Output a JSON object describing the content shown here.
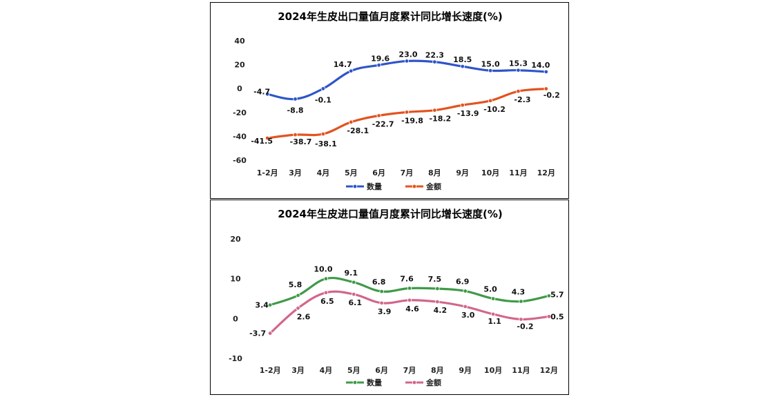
{
  "chart_data": [
    {
      "type": "line",
      "title": "2024年生皮出口量值月度累计同比增长速度(%)",
      "categories": [
        "1-2月",
        "3月",
        "4月",
        "5月",
        "6月",
        "7月",
        "8月",
        "9月",
        "10月",
        "11月",
        "12月"
      ],
      "yticks": [
        "40",
        "20",
        "0",
        "-20",
        "-40",
        "-60"
      ],
      "ylim": [
        -60,
        40
      ],
      "series": [
        {
          "name": "数量",
          "color": "#2E55C9",
          "values": [
            -4.7,
            -8.8,
            -0.1,
            14.7,
            19.6,
            23.0,
            22.3,
            18.5,
            15.0,
            15.3,
            14.0
          ],
          "labels": [
            "-4.7",
            "-8.8",
            "-0.1",
            "14.7",
            "19.6",
            "23.0",
            "22.3",
            "18.5",
            "15.0",
            "15.3",
            "14.0"
          ]
        },
        {
          "name": "金额",
          "color": "#E2531F",
          "values": [
            -41.5,
            -38.7,
            -38.1,
            -28.1,
            -22.7,
            -19.8,
            -18.2,
            -13.9,
            -10.2,
            -2.3,
            -0.2
          ],
          "labels": [
            "-41.5",
            "-38.7",
            "-38.1",
            "-28.1",
            "-22.7",
            "-19.8",
            "-18.2",
            "-13.9",
            "-10.2",
            "-2.3",
            "-0.2"
          ]
        }
      ],
      "legend": "bottom"
    },
    {
      "type": "line",
      "title": "2024年生皮进口量值月度累计同比增长速度(%)",
      "categories": [
        "1-2月",
        "3月",
        "4月",
        "5月",
        "6月",
        "7月",
        "8月",
        "9月",
        "10月",
        "11月",
        "12月"
      ],
      "yticks": [
        "20",
        "10",
        "0",
        "-10"
      ],
      "ylim": [
        -10,
        20
      ],
      "series": [
        {
          "name": "数量",
          "color": "#3F9A48",
          "values": [
            3.4,
            5.8,
            10.0,
            9.1,
            6.8,
            7.6,
            7.5,
            6.9,
            5.0,
            4.3,
            5.7
          ],
          "labels": [
            "3.4",
            "5.8",
            "10.0",
            "9.1",
            "6.8",
            "7.6",
            "7.5",
            "6.9",
            "5.0",
            "4.3",
            "5.7"
          ]
        },
        {
          "name": "金额",
          "color": "#D2668B",
          "values": [
            -3.7,
            2.6,
            6.5,
            6.1,
            3.9,
            4.6,
            4.2,
            3.0,
            1.1,
            -0.2,
            0.5
          ],
          "labels": [
            "-3.7",
            "2.6",
            "6.5",
            "6.1",
            "3.9",
            "4.6",
            "4.2",
            "3.0",
            "1.1",
            "-0.2",
            "0.5"
          ]
        }
      ],
      "legend": "bottom"
    }
  ]
}
